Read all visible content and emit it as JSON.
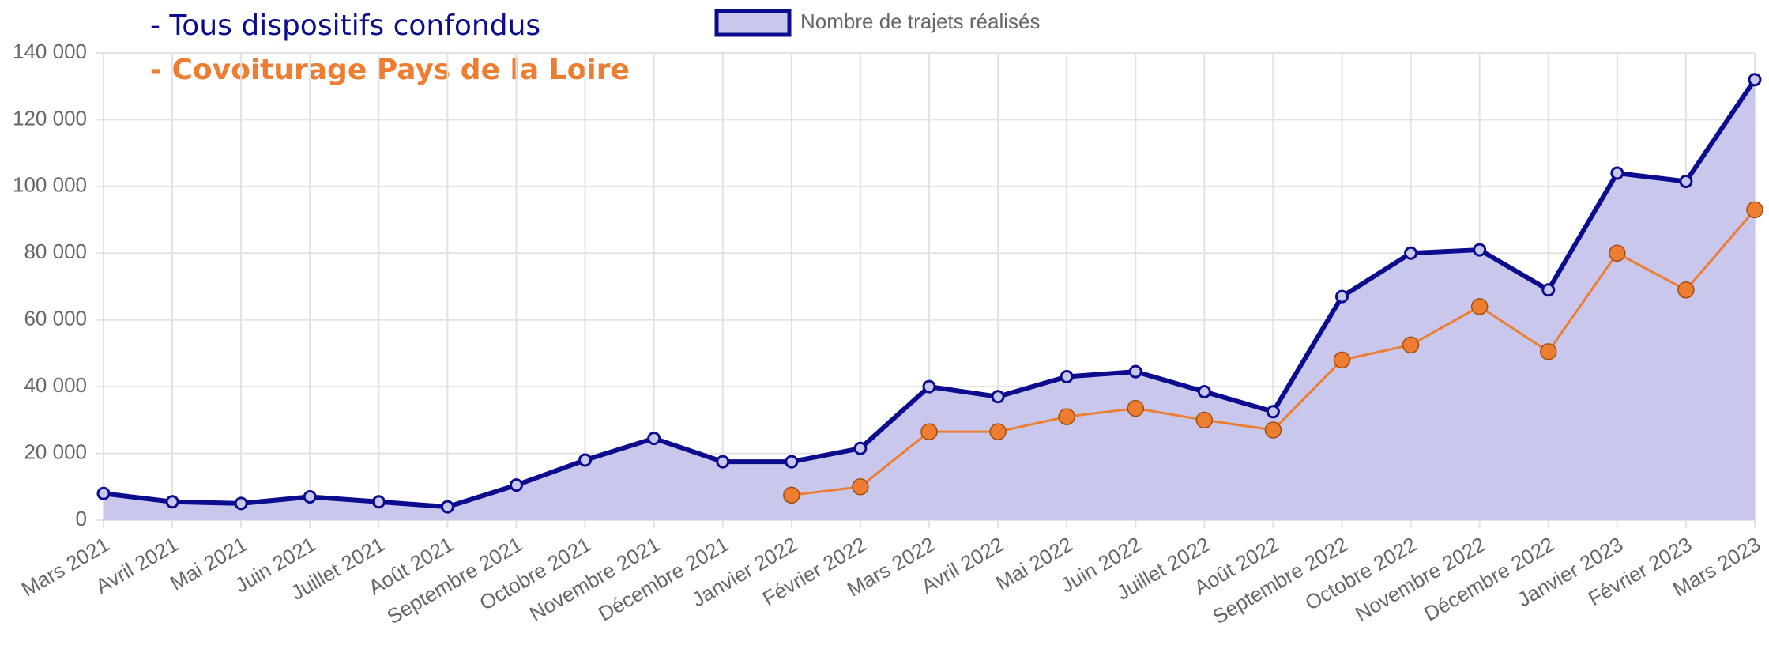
{
  "chart_data": {
    "type": "line",
    "annotations": [
      "- Tous dispositifs confondus",
      "- Covoiturage Pays de la Loire"
    ],
    "categories": [
      "Mars 2021",
      "Avril 2021",
      "Mai 2021",
      "Juin 2021",
      "Juillet 2021",
      "Août 2021",
      "Septembre 2021",
      "Octobre 2021",
      "Novembre 2021",
      "Décembre 2021",
      "Janvier 2022",
      "Février 2022",
      "Mars 2022",
      "Avril 2022",
      "Mai 2022",
      "Juin 2022",
      "Juillet 2022",
      "Août 2022",
      "Septembre 2022",
      "Octobre 2022",
      "Novembre 2022",
      "Décembre 2022",
      "Janvier 2023",
      "Février 2023",
      "Mars 2023"
    ],
    "series": [
      {
        "name": "Nombre de trajets réalisés",
        "color": "#0c0c8e",
        "fill": "#c9c8ec",
        "values": [
          8000,
          5500,
          5000,
          7000,
          5500,
          4000,
          10500,
          18000,
          24500,
          17500,
          17500,
          21500,
          40000,
          37000,
          43000,
          44500,
          38500,
          32500,
          67000,
          80000,
          81000,
          69000,
          104000,
          101500,
          132000
        ]
      },
      {
        "color": "#ed7d31",
        "values": [
          null,
          null,
          null,
          null,
          null,
          null,
          null,
          null,
          null,
          null,
          7500,
          10000,
          26500,
          26500,
          31000,
          33500,
          30000,
          27000,
          48000,
          52500,
          64000,
          50500,
          80000,
          69000,
          93000
        ]
      }
    ],
    "ylim": [
      0,
      140000
    ],
    "yticks": [
      0,
      {
        "value": 20000,
        "label": "20 000"
      },
      {
        "value": 40000,
        "label": "40 000"
      },
      {
        "value": 60000,
        "label": "60 000"
      },
      {
        "value": 80000,
        "label": "80 000"
      },
      {
        "value": 100000,
        "label": "100 000"
      },
      {
        "value": 120000,
        "label": "120 000"
      },
      {
        "value": 140000,
        "label": "140 000"
      }
    ],
    "grid": true
  }
}
